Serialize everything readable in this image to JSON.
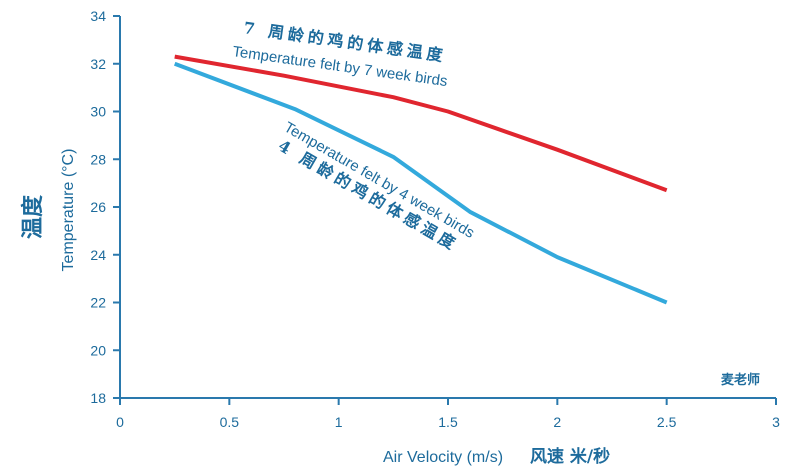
{
  "chart_data": {
    "type": "line",
    "xlabel": "Air Velocity (m/s)",
    "xlabel_cn": "风速 米/秒",
    "ylabel": "Temperature (°C)",
    "ylabel_cn": "温度",
    "xlim": [
      0,
      3
    ],
    "ylim": [
      18,
      34
    ],
    "x_ticks": [
      "0",
      "0.5",
      "1",
      "1.5",
      "2",
      "2.5",
      "3"
    ],
    "y_ticks": [
      "18",
      "20",
      "22",
      "24",
      "26",
      "28",
      "30",
      "32",
      "34"
    ],
    "grid": false,
    "series": [
      {
        "name": "Temperature felt by 7 week birds",
        "name_cn": "7 周龄的鸡的体感温度",
        "color": "#e0262f",
        "x": [
          0.25,
          0.75,
          1.25,
          1.5,
          2.0,
          2.5
        ],
        "y": [
          32.3,
          31.5,
          30.6,
          30.0,
          28.4,
          26.7
        ]
      },
      {
        "name": "Temperature felt by 4 week birds",
        "name_cn": "4 周龄的鸡的体感温度",
        "color": "#33a9dc",
        "x": [
          0.25,
          0.8,
          1.25,
          1.6,
          2.0,
          2.5
        ],
        "y": [
          32.0,
          30.1,
          28.1,
          25.8,
          23.9,
          22.0
        ]
      }
    ],
    "watermark": "麦老师"
  }
}
